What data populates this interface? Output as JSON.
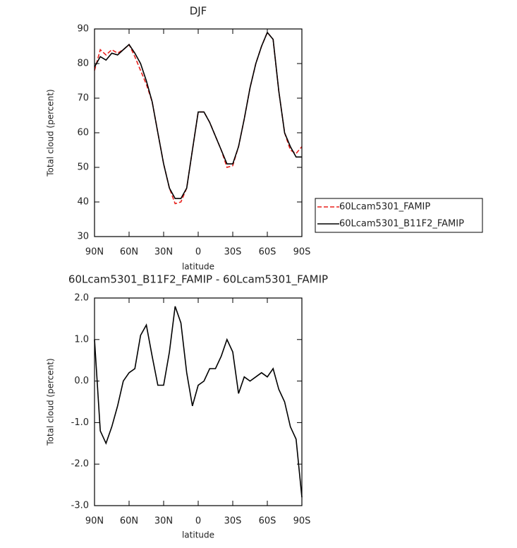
{
  "chart_data": [
    {
      "type": "line",
      "title": "DJF",
      "xlabel": "latitude",
      "ylabel": "Total cloud (percent)",
      "x": [
        90,
        85,
        80,
        75,
        70,
        65,
        60,
        55,
        50,
        45,
        40,
        35,
        30,
        25,
        20,
        15,
        10,
        5,
        0,
        -5,
        -10,
        -15,
        -20,
        -25,
        -30,
        -35,
        -40,
        -45,
        -50,
        -55,
        -60,
        -65,
        -70,
        -75,
        -80,
        -85,
        -90
      ],
      "series": [
        {
          "name": "60Lcam5301_FAMIP",
          "color": "#e8201c",
          "style": "dashed",
          "values": [
            78,
            84,
            82.5,
            84,
            83,
            84,
            85.5,
            82,
            78,
            74,
            69,
            60,
            51,
            44,
            39.5,
            40,
            44,
            55,
            66,
            66,
            63,
            59,
            55,
            50,
            50.5,
            56,
            64,
            73,
            80,
            85,
            89,
            87,
            72,
            60,
            55,
            54,
            56
          ]
        },
        {
          "name": "60Lcam5301_B11F2_FAMIP",
          "color": "#000000",
          "style": "solid",
          "values": [
            79,
            82,
            81,
            83,
            82.5,
            84,
            85.5,
            83,
            80,
            75,
            69,
            60,
            51,
            44,
            41,
            41,
            44,
            55,
            66,
            66,
            63,
            59,
            55,
            51,
            51,
            56,
            64,
            73,
            80,
            85,
            89,
            87,
            72,
            60,
            56,
            53,
            53
          ]
        }
      ],
      "xlim": [
        90,
        -90
      ],
      "xticks": [
        {
          "value": 90,
          "label": "90N"
        },
        {
          "value": 60,
          "label": "60N"
        },
        {
          "value": 30,
          "label": "30N"
        },
        0,
        {
          "value": -30,
          "label": "30S"
        },
        {
          "value": -60,
          "label": "60S"
        },
        {
          "value": -90,
          "label": "90S"
        }
      ],
      "ylim": [
        30,
        90
      ],
      "yticks": [
        30,
        40,
        50,
        60,
        70,
        80,
        90
      ],
      "legend": "right"
    },
    {
      "type": "line",
      "title": "60Lcam5301_B11F2_FAMIP - 60Lcam5301_FAMIP",
      "xlabel": "latitude",
      "ylabel": "Total cloud (percent)",
      "x": [
        90,
        85,
        80,
        75,
        70,
        65,
        60,
        55,
        50,
        45,
        40,
        35,
        30,
        25,
        20,
        15,
        10,
        5,
        0,
        -5,
        -10,
        -15,
        -20,
        -25,
        -30,
        -35,
        -40,
        -45,
        -50,
        -55,
        -60,
        -65,
        -70,
        -75,
        -80,
        -85,
        -90
      ],
      "values": [
        1.0,
        -1.2,
        -1.5,
        -1.1,
        -0.6,
        0.0,
        0.2,
        0.3,
        1.1,
        1.35,
        0.6,
        -0.1,
        -0.1,
        0.7,
        1.8,
        1.4,
        0.2,
        -0.6,
        -0.1,
        0.0,
        0.3,
        0.3,
        0.6,
        1.0,
        0.7,
        -0.3,
        0.1,
        0.0,
        0.1,
        0.2,
        0.1,
        0.3,
        -0.2,
        -0.5,
        -1.1,
        -1.4,
        -2.8
      ],
      "color": "#000000",
      "xlim": [
        90,
        -90
      ],
      "xticks": [
        {
          "value": 90,
          "label": "90N"
        },
        {
          "value": 60,
          "label": "60N"
        },
        {
          "value": 30,
          "label": "30N"
        },
        0,
        {
          "value": -30,
          "label": "30S"
        },
        {
          "value": -60,
          "label": "60S"
        },
        {
          "value": -90,
          "label": "90S"
        }
      ],
      "ylim": [
        -3,
        2
      ],
      "yticks": [
        {
          "value": -3,
          "label": "-3.0"
        },
        {
          "value": -2,
          "label": "-2.0"
        },
        {
          "value": -1,
          "label": "-1.0"
        },
        {
          "value": 0,
          "label": "0.0"
        },
        {
          "value": 1,
          "label": "1.0"
        },
        {
          "value": 2,
          "label": "2.0"
        }
      ]
    }
  ]
}
